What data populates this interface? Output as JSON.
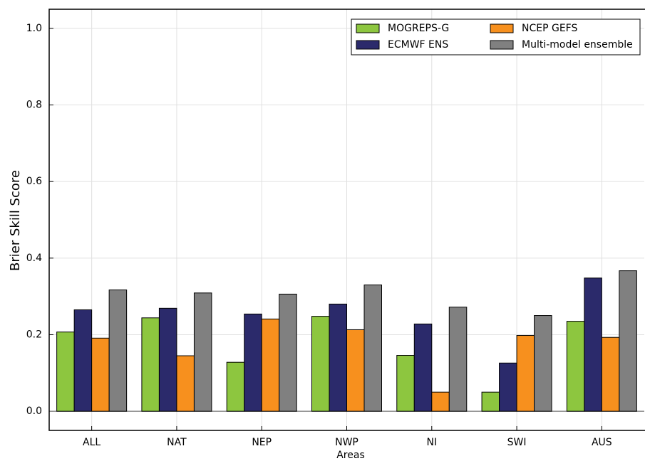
{
  "chart_data": {
    "type": "bar",
    "categories": [
      "ALL",
      "NAT",
      "NEP",
      "NWP",
      "NI",
      "SWI",
      "AUS"
    ],
    "series": [
      {
        "name": "MOGREPS-G",
        "color": "#8dc63f",
        "values": [
          0.207,
          0.244,
          0.128,
          0.248,
          0.146,
          0.05,
          0.235
        ]
      },
      {
        "name": "ECMWF ENS",
        "color": "#2b2a6b",
        "values": [
          0.265,
          0.269,
          0.254,
          0.28,
          0.228,
          0.126,
          0.348
        ]
      },
      {
        "name": "NCEP GEFS",
        "color": "#f7901e",
        "values": [
          0.191,
          0.145,
          0.241,
          0.213,
          0.05,
          0.198,
          0.193
        ]
      },
      {
        "name": "Multi-model ensemble",
        "color": "#808080",
        "values": [
          0.317,
          0.309,
          0.306,
          0.33,
          0.272,
          0.25,
          0.367
        ]
      }
    ],
    "xlabel": "Areas",
    "ylabel": "Brier Skill Score",
    "ylim": [
      -0.05,
      1.05
    ],
    "yticks": [
      {
        "value": 0,
        "label": "0.0"
      },
      0.2,
      0.4,
      0.6,
      0.8,
      {
        "value": 1,
        "label": "1.0"
      }
    ],
    "grid": true,
    "legend": "upper right"
  }
}
